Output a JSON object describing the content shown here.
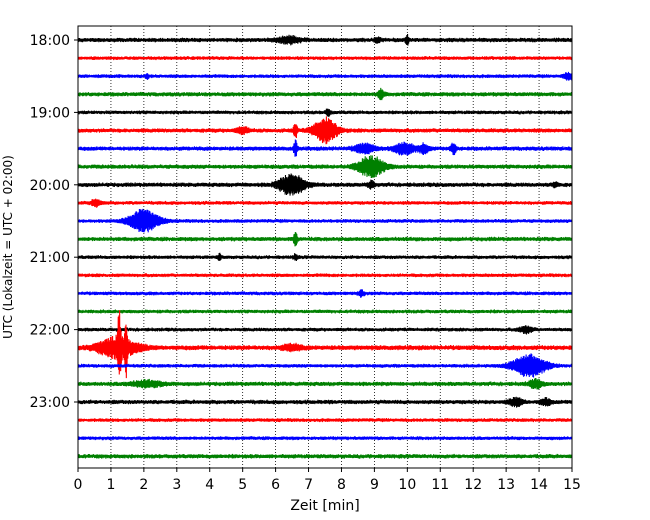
{
  "chart_data": {
    "type": "line",
    "title": "",
    "xlabel": "Zeit  [min]",
    "ylabel": "UTC (Lokalzeit = UTC + 02:00)",
    "xlim": [
      0,
      15
    ],
    "xticks": [
      0,
      1,
      2,
      3,
      4,
      5,
      6,
      7,
      8,
      9,
      10,
      11,
      12,
      13,
      14,
      15
    ],
    "ytick_labels": [
      "18:00",
      "19:00",
      "20:00",
      "21:00",
      "22:00",
      "23:00"
    ],
    "grid": "vertical dotted at each minute",
    "trace_interval_minutes": 15,
    "series_colors": [
      "#000000",
      "#ff0000",
      "#0000ff",
      "#008000"
    ],
    "traces": [
      {
        "start": "18:00",
        "color": "#000000",
        "noise": 0.35,
        "events": [
          {
            "t": 6.4,
            "amp": 0.6,
            "w": 0.35
          },
          {
            "t": 10.0,
            "amp": 0.8,
            "w": 0.05
          },
          {
            "t": 9.1,
            "amp": 0.4,
            "w": 0.1
          }
        ]
      },
      {
        "start": "18:15",
        "color": "#ff0000",
        "noise": 0.3,
        "events": []
      },
      {
        "start": "18:30",
        "color": "#0000ff",
        "noise": 0.3,
        "events": [
          {
            "t": 2.1,
            "amp": 0.5,
            "w": 0.05
          },
          {
            "t": 14.9,
            "amp": 0.6,
            "w": 0.15
          }
        ]
      },
      {
        "start": "18:45",
        "color": "#008000",
        "noise": 0.35,
        "events": [
          {
            "t": 9.2,
            "amp": 0.8,
            "w": 0.1
          }
        ]
      },
      {
        "start": "19:00",
        "color": "#000000",
        "noise": 0.3,
        "events": [
          {
            "t": 7.6,
            "amp": 0.6,
            "w": 0.08
          }
        ]
      },
      {
        "start": "19:15",
        "color": "#ff0000",
        "noise": 0.35,
        "events": [
          {
            "t": 7.5,
            "amp": 2.2,
            "w": 0.35
          },
          {
            "t": 5.0,
            "amp": 0.5,
            "w": 0.2
          },
          {
            "t": 6.6,
            "amp": 1.3,
            "w": 0.06
          }
        ]
      },
      {
        "start": "19:30",
        "color": "#0000ff",
        "noise": 0.35,
        "events": [
          {
            "t": 8.7,
            "amp": 0.8,
            "w": 0.3
          },
          {
            "t": 9.9,
            "amp": 1.0,
            "w": 0.3
          },
          {
            "t": 10.5,
            "amp": 0.9,
            "w": 0.15
          },
          {
            "t": 11.4,
            "amp": 1.0,
            "w": 0.08
          },
          {
            "t": 6.6,
            "amp": 1.5,
            "w": 0.05
          }
        ]
      },
      {
        "start": "19:45",
        "color": "#008000",
        "noise": 0.35,
        "events": [
          {
            "t": 8.9,
            "amp": 1.8,
            "w": 0.4
          }
        ]
      },
      {
        "start": "20:00",
        "color": "#000000",
        "noise": 0.35,
        "events": [
          {
            "t": 6.5,
            "amp": 1.9,
            "w": 0.4
          },
          {
            "t": 14.5,
            "amp": 0.5,
            "w": 0.08
          },
          {
            "t": 8.9,
            "amp": 0.6,
            "w": 0.1
          }
        ]
      },
      {
        "start": "20:15",
        "color": "#ff0000",
        "noise": 0.3,
        "events": [
          {
            "t": 0.55,
            "amp": 0.6,
            "w": 0.15
          }
        ]
      },
      {
        "start": "20:30",
        "color": "#0000ff",
        "noise": 0.3,
        "events": [
          {
            "t": 2.0,
            "amp": 2.0,
            "w": 0.45
          }
        ]
      },
      {
        "start": "20:45",
        "color": "#008000",
        "noise": 0.35,
        "events": [
          {
            "t": 6.6,
            "amp": 1.5,
            "w": 0.05
          }
        ]
      },
      {
        "start": "21:00",
        "color": "#000000",
        "noise": 0.3,
        "events": [
          {
            "t": 4.3,
            "amp": 0.5,
            "w": 0.05
          },
          {
            "t": 6.6,
            "amp": 0.6,
            "w": 0.05
          }
        ]
      },
      {
        "start": "21:15",
        "color": "#ff0000",
        "noise": 0.3,
        "events": []
      },
      {
        "start": "21:30",
        "color": "#0000ff",
        "noise": 0.3,
        "events": [
          {
            "t": 8.6,
            "amp": 0.6,
            "w": 0.08
          }
        ]
      },
      {
        "start": "21:45",
        "color": "#008000",
        "noise": 0.3,
        "events": []
      },
      {
        "start": "22:00",
        "color": "#000000",
        "noise": 0.3,
        "events": [
          {
            "t": 13.6,
            "amp": 0.6,
            "w": 0.2
          }
        ]
      },
      {
        "start": "22:15",
        "color": "#ff0000",
        "noise": 0.4,
        "events": [
          {
            "t": 1.2,
            "amp": 1.8,
            "w": 0.6
          },
          {
            "t": 1.25,
            "amp": 5.5,
            "w": 0.05
          },
          {
            "t": 1.45,
            "amp": 4.5,
            "w": 0.04
          },
          {
            "t": 6.5,
            "amp": 0.5,
            "w": 0.3
          }
        ]
      },
      {
        "start": "22:30",
        "color": "#0000ff",
        "noise": 0.3,
        "events": [
          {
            "t": 13.7,
            "amp": 2.0,
            "w": 0.5
          }
        ]
      },
      {
        "start": "22:45",
        "color": "#008000",
        "noise": 0.35,
        "events": [
          {
            "t": 2.1,
            "amp": 0.5,
            "w": 0.5
          },
          {
            "t": 13.9,
            "amp": 0.7,
            "w": 0.2
          }
        ]
      },
      {
        "start": "23:00",
        "color": "#000000",
        "noise": 0.35,
        "events": [
          {
            "t": 13.3,
            "amp": 0.7,
            "w": 0.2
          },
          {
            "t": 14.2,
            "amp": 0.6,
            "w": 0.15
          }
        ]
      },
      {
        "start": "23:15",
        "color": "#ff0000",
        "noise": 0.3,
        "events": []
      },
      {
        "start": "23:30",
        "color": "#0000ff",
        "noise": 0.3,
        "events": []
      },
      {
        "start": "23:45",
        "color": "#008000",
        "noise": 0.35,
        "events": []
      }
    ]
  }
}
